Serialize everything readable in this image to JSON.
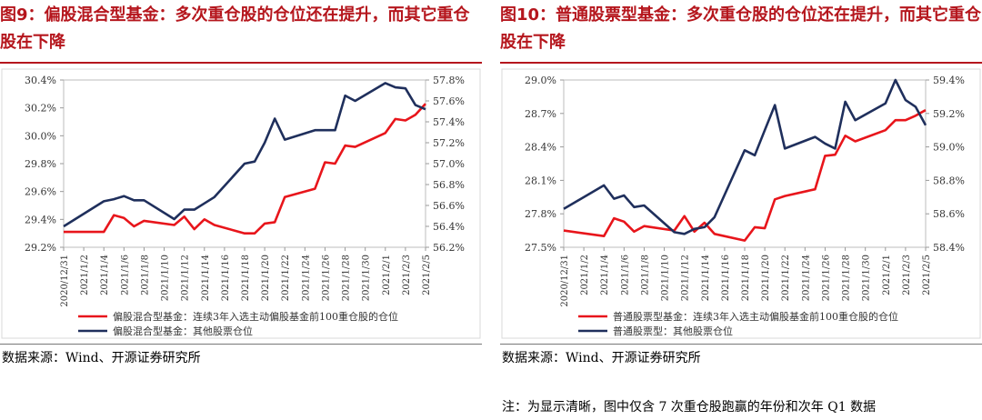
{
  "panels": [
    {
      "title": "图9：偏股混合型基金：多次重仓股的仓位还在提升，而其它重仓股在下降",
      "source": "数据来源：Wind、开源证券研究所"
    },
    {
      "title": "图10：普通股票型基金：多次重仓股的仓位还在提升，而其它重仓股在下降",
      "source": "数据来源：Wind、开源证券研究所"
    }
  ],
  "footnote": "注：为显示清晰，图中仅含 7 次重仓股跑赢的年份和次年 Q1 数据",
  "chart_data": [
    {
      "type": "line",
      "x_labels": [
        "2020/12/31",
        "2021/1/2",
        "2021/1/4",
        "2021/1/6",
        "2021/1/8",
        "2021/1/10",
        "2021/1/12",
        "2021/1/14",
        "2021/1/16",
        "2021/1/18",
        "2021/1/20",
        "2021/1/22",
        "2021/1/24",
        "2021/1/26",
        "2021/1/28",
        "2021/1/30",
        "2021/2/1",
        "2021/2/3",
        "2021/2/5"
      ],
      "x_range": [
        0,
        36
      ],
      "y_left": {
        "ticks": [
          "29.2%",
          "29.4%",
          "29.6%",
          "29.8%",
          "30.0%",
          "30.2%",
          "30.4%"
        ],
        "min": 29.2,
        "max": 30.4
      },
      "y_right": {
        "ticks": [
          "56.2%",
          "56.4%",
          "56.6%",
          "56.8%",
          "57.0%",
          "57.2%",
          "57.4%",
          "57.6%",
          "57.8%"
        ],
        "min": 56.2,
        "max": 57.8
      },
      "series": [
        {
          "name": "偏股混合型基金：连续3年入选主动偏股基金前100重仓股的仓位",
          "axis": "left",
          "color": "#e8151b",
          "points": [
            [
              0,
              29.31
            ],
            [
              4,
              29.31
            ],
            [
              5,
              29.43
            ],
            [
              6,
              29.41
            ],
            [
              7,
              29.35
            ],
            [
              8,
              29.39
            ],
            [
              11,
              29.36
            ],
            [
              12,
              29.42
            ],
            [
              13,
              29.33
            ],
            [
              14,
              29.4
            ],
            [
              15,
              29.36
            ],
            [
              18,
              29.3
            ],
            [
              19,
              29.3
            ],
            [
              20,
              29.37
            ],
            [
              21,
              29.38
            ],
            [
              22,
              29.56
            ],
            [
              25,
              29.62
            ],
            [
              26,
              29.81
            ],
            [
              27,
              29.8
            ],
            [
              28,
              29.93
            ],
            [
              29,
              29.92
            ],
            [
              32,
              30.02
            ],
            [
              33,
              30.12
            ],
            [
              34,
              30.11
            ],
            [
              35,
              30.15
            ],
            [
              36,
              30.23
            ]
          ]
        },
        {
          "name": "偏股混合型基金：其他股票仓位",
          "axis": "right",
          "color": "#1f2f5c",
          "points": [
            [
              0,
              56.4
            ],
            [
              4,
              56.64
            ],
            [
              5,
              56.66
            ],
            [
              6,
              56.69
            ],
            [
              7,
              56.65
            ],
            [
              8,
              56.65
            ],
            [
              11,
              56.47
            ],
            [
              12,
              56.56
            ],
            [
              13,
              56.56
            ],
            [
              14,
              56.62
            ],
            [
              15,
              56.68
            ],
            [
              18,
              57.0
            ],
            [
              19,
              57.02
            ],
            [
              20,
              57.2
            ],
            [
              21,
              57.43
            ],
            [
              22,
              57.23
            ],
            [
              25,
              57.32
            ],
            [
              26,
              57.32
            ],
            [
              27,
              57.32
            ],
            [
              28,
              57.65
            ],
            [
              29,
              57.6
            ],
            [
              32,
              57.77
            ],
            [
              33,
              57.73
            ],
            [
              34,
              57.72
            ],
            [
              35,
              57.56
            ],
            [
              36,
              57.52
            ]
          ]
        }
      ]
    },
    {
      "type": "line",
      "x_labels": [
        "2020/12/31",
        "2021/1/2",
        "2021/1/4",
        "2021/1/6",
        "2021/1/8",
        "2021/1/10",
        "2021/1/12",
        "2021/1/14",
        "2021/1/16",
        "2021/1/18",
        "2021/1/20",
        "2021/1/22",
        "2021/1/24",
        "2021/1/26",
        "2021/1/28",
        "2021/1/30",
        "2021/2/1",
        "2021/2/3",
        "2021/2/5"
      ],
      "x_range": [
        0,
        36
      ],
      "y_left": {
        "ticks": [
          "27.5%",
          "27.8%",
          "28.1%",
          "28.4%",
          "28.7%",
          "29.0%"
        ],
        "min": 27.5,
        "max": 29.0
      },
      "y_right": {
        "ticks": [
          "58.4%",
          "58.6%",
          "58.8%",
          "59.0%",
          "59.2%",
          "59.4%"
        ],
        "min": 58.4,
        "max": 59.4
      },
      "series": [
        {
          "name": "普通股票型基金：连续3年入选主动偏股基金前100重仓股的仓位",
          "axis": "left",
          "color": "#e8151b",
          "points": [
            [
              0,
              27.65
            ],
            [
              4,
              27.6
            ],
            [
              5,
              27.76
            ],
            [
              6,
              27.73
            ],
            [
              7,
              27.64
            ],
            [
              8,
              27.69
            ],
            [
              11,
              27.65
            ],
            [
              12,
              27.78
            ],
            [
              13,
              27.64
            ],
            [
              14,
              27.72
            ],
            [
              15,
              27.62
            ],
            [
              18,
              27.56
            ],
            [
              19,
              27.68
            ],
            [
              20,
              27.67
            ],
            [
              21,
              27.93
            ],
            [
              22,
              27.96
            ],
            [
              25,
              28.02
            ],
            [
              26,
              28.32
            ],
            [
              27,
              28.33
            ],
            [
              28,
              28.5
            ],
            [
              29,
              28.45
            ],
            [
              32,
              28.55
            ],
            [
              33,
              28.64
            ],
            [
              34,
              28.64
            ],
            [
              35,
              28.68
            ],
            [
              36,
              28.73
            ]
          ]
        },
        {
          "name": "普通股票型：其他股票仓位",
          "axis": "right",
          "color": "#1f2f5c",
          "points": [
            [
              0,
              58.63
            ],
            [
              4,
              58.77
            ],
            [
              5,
              58.69
            ],
            [
              6,
              58.71
            ],
            [
              7,
              58.64
            ],
            [
              8,
              58.65
            ],
            [
              11,
              58.49
            ],
            [
              12,
              58.48
            ],
            [
              13,
              58.51
            ],
            [
              14,
              58.52
            ],
            [
              15,
              58.58
            ],
            [
              18,
              58.98
            ],
            [
              19,
              58.95
            ],
            [
              20,
              59.1
            ],
            [
              21,
              59.25
            ],
            [
              22,
              58.99
            ],
            [
              25,
              59.06
            ],
            [
              26,
              59.02
            ],
            [
              27,
              58.99
            ],
            [
              28,
              59.27
            ],
            [
              29,
              59.16
            ],
            [
              32,
              59.26
            ],
            [
              33,
              59.4
            ],
            [
              34,
              59.28
            ],
            [
              35,
              59.24
            ],
            [
              36,
              59.13
            ]
          ]
        }
      ]
    }
  ]
}
